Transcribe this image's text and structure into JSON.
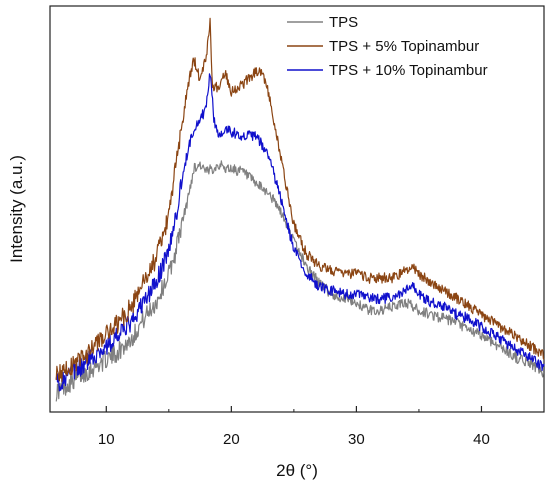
{
  "chart_data": {
    "type": "line",
    "title": "",
    "xlabel": "2θ (°)",
    "ylabel": "Intensity (a.u.)",
    "xlim": [
      5.5,
      45
    ],
    "ylim": [
      0,
      100
    ],
    "xticks": [
      10,
      20,
      30,
      40
    ],
    "yticks_shown": false,
    "grid": false,
    "legend_position": "top-right",
    "series": [
      {
        "name": "TPS",
        "color": "#808080",
        "x": [
          6,
          7,
          8,
          9,
          10,
          11,
          12,
          13,
          14,
          15,
          15.5,
          16,
          16.5,
          17,
          17.5,
          18,
          18.5,
          19,
          19.5,
          20,
          21,
          22,
          23,
          24,
          25,
          26,
          27,
          28,
          29,
          30,
          31,
          32,
          33,
          34,
          34.5,
          35,
          36,
          37,
          38,
          39,
          40,
          41,
          42,
          43,
          44,
          45
        ],
        "y": [
          5,
          7,
          9,
          11,
          13,
          15,
          18,
          23,
          27,
          34,
          39,
          46,
          52,
          60,
          61,
          59,
          60,
          61,
          60,
          60,
          59,
          56,
          54,
          49,
          42,
          36,
          32,
          29,
          28,
          27,
          25,
          25,
          26,
          27,
          26,
          25,
          24,
          23,
          22,
          20,
          19,
          17,
          15,
          13,
          12,
          9
        ]
      },
      {
        "name": "TPS + 5% Topinambur",
        "color": "#8B4513",
        "x": [
          6,
          7,
          8,
          9,
          10,
          11,
          12,
          13,
          14,
          15,
          15.5,
          16,
          16.5,
          17,
          17.5,
          18,
          18.3,
          18.5,
          19,
          19.5,
          20,
          21,
          22,
          22.5,
          23,
          24,
          25,
          26,
          27,
          28,
          29,
          30,
          31,
          32,
          33,
          34,
          34.5,
          35,
          36,
          37,
          38,
          39,
          40,
          41,
          42,
          43,
          44,
          45
        ],
        "y": [
          9,
          11,
          13,
          16,
          19,
          22,
          26,
          32,
          38,
          48,
          60,
          69,
          80,
          87,
          82,
          88,
          96,
          80,
          80,
          84,
          79,
          81,
          84,
          84,
          78,
          62,
          46,
          39,
          36,
          35,
          34,
          34,
          33,
          33,
          33,
          35,
          36,
          34,
          32,
          30,
          28,
          26,
          24,
          22,
          20,
          18,
          16,
          14
        ]
      },
      {
        "name": "TPS + 10% Topinambur",
        "color": "#1010CC",
        "x": [
          6,
          7,
          8,
          9,
          10,
          11,
          12,
          13,
          14,
          15,
          15.5,
          16,
          16.5,
          17,
          17.5,
          18,
          18.3,
          18.6,
          19,
          19.5,
          20,
          21,
          22,
          23,
          24,
          25,
          26,
          27,
          28,
          29,
          30,
          31,
          32,
          33,
          34,
          34.5,
          35,
          36,
          37,
          38,
          39,
          40,
          41,
          42,
          43,
          44,
          45
        ],
        "y": [
          7,
          9,
          11,
          14,
          16,
          19,
          22,
          27,
          32,
          40,
          47,
          56,
          64,
          70,
          72,
          75,
          84,
          72,
          68,
          70,
          69,
          68,
          68,
          63,
          52,
          40,
          34,
          31,
          30,
          29,
          29,
          28,
          28,
          28,
          30,
          31,
          29,
          27,
          26,
          24,
          23,
          21,
          19,
          17,
          15,
          13,
          11
        ]
      }
    ]
  }
}
